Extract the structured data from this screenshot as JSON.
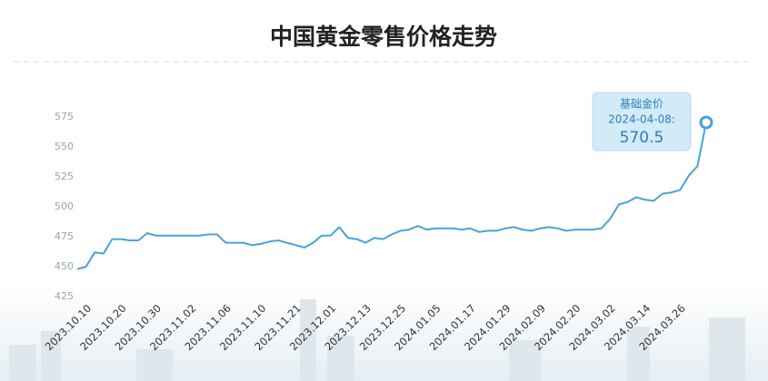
{
  "chart_data": {
    "type": "line",
    "title": "中国黄金零售价格走势",
    "categories": [
      null,
      "2023.10.10",
      null,
      null,
      null,
      "2023.10.20",
      null,
      null,
      null,
      "2023.10.30",
      null,
      null,
      null,
      "2023.11.02",
      null,
      null,
      null,
      "2023.11.06",
      null,
      null,
      null,
      "2023.11.10",
      null,
      null,
      null,
      "2023.11.21",
      null,
      null,
      null,
      "2023.12.01",
      null,
      null,
      null,
      "2023.12.13",
      null,
      null,
      null,
      "2023.12.25",
      null,
      null,
      null,
      "2024.01.05",
      null,
      null,
      null,
      "2024.01.17",
      null,
      null,
      null,
      "2024.01.29",
      null,
      null,
      null,
      "2024.02.09",
      null,
      null,
      null,
      "2024.02.20",
      null,
      null,
      null,
      "2024.03.02",
      null,
      null,
      null,
      "2024.03.14",
      null,
      null,
      null,
      "2024.03.26",
      null,
      null,
      null
    ],
    "series": [
      {
        "name": "基础金价",
        "color": "#4aa3d8",
        "values": [
          448,
          450,
          462,
          461,
          473,
          473,
          472,
          472,
          478,
          476,
          476,
          476,
          476,
          476,
          476,
          477,
          477,
          470,
          470,
          470,
          468,
          469,
          471,
          472,
          470,
          468,
          466,
          470,
          476,
          476,
          483,
          474,
          473,
          470,
          474,
          473,
          477,
          480,
          481,
          484,
          481,
          482,
          482,
          482,
          481,
          482,
          479,
          480,
          480,
          482,
          483,
          481,
          480,
          482,
          483,
          482,
          480,
          481,
          481,
          481,
          482,
          490,
          502,
          504,
          508,
          506,
          505,
          511,
          512,
          514,
          526,
          534,
          570.5
        ]
      }
    ],
    "tooltip": {
      "date": "2024-04-08:",
      "value": "570.5"
    },
    "ylim": [
      425,
      580
    ],
    "yticks": [
      425,
      450,
      475,
      500,
      525,
      550,
      575
    ],
    "grid": false
  }
}
